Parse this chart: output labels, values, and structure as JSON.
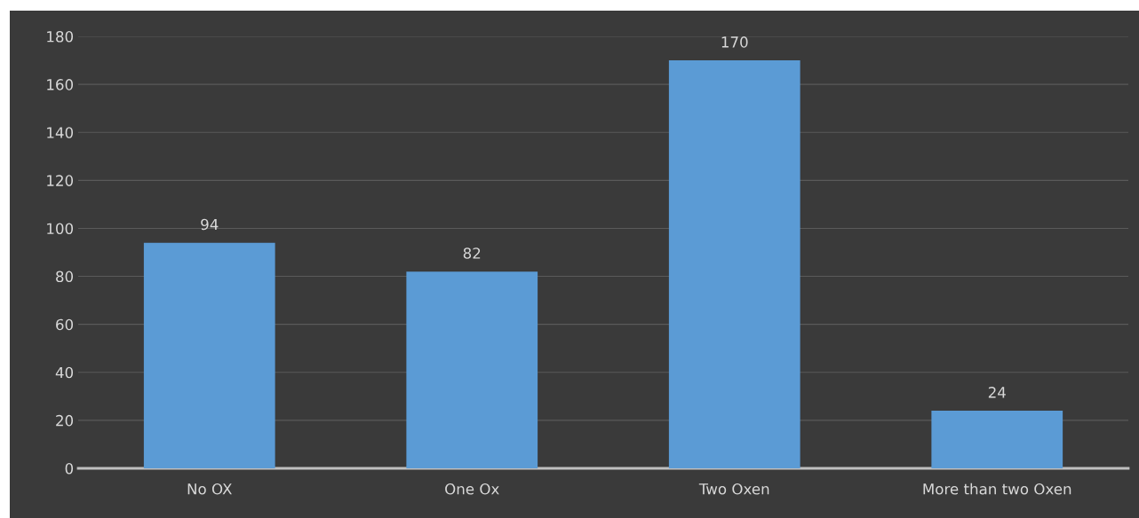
{
  "chart_data": {
    "type": "bar",
    "categories": [
      "No OX",
      "One Ox",
      "Two Oxen",
      "More than two Oxen"
    ],
    "values": [
      94,
      82,
      170,
      24
    ],
    "color": "#5b9bd5",
    "ylim": [
      0,
      180
    ],
    "yticks": [
      0,
      20,
      40,
      60,
      80,
      100,
      120,
      140,
      160,
      180
    ],
    "grid": "y",
    "data_labels": true,
    "legend": false
  }
}
